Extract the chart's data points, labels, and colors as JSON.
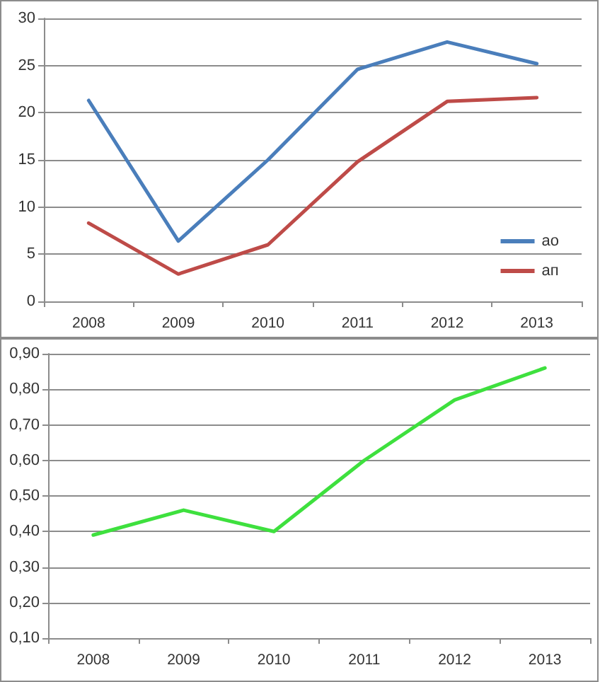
{
  "chart_data": [
    {
      "type": "line",
      "categories": [
        "2008",
        "2009",
        "2010",
        "2011",
        "2012",
        "2013"
      ],
      "series": [
        {
          "name": "ао",
          "color": "#4a7ebb",
          "values": [
            21.3,
            6.4,
            15.0,
            24.6,
            27.5,
            25.2
          ]
        },
        {
          "name": "ап",
          "color": "#be4b48",
          "values": [
            8.3,
            2.9,
            6.0,
            14.8,
            21.2,
            21.6
          ]
        }
      ],
      "ylim": [
        0,
        30
      ],
      "yticks": [
        0,
        5,
        10,
        15,
        20,
        25,
        30
      ],
      "grid": "y",
      "legend": "bottom right",
      "marker": "none"
    },
    {
      "type": "line",
      "categories": [
        "2008",
        "2009",
        "2010",
        "2011",
        "2012",
        "2013"
      ],
      "series": [
        {
          "color": "#3ee03e",
          "values": [
            0.39,
            0.46,
            0.4,
            0.6,
            0.77,
            0.86
          ]
        }
      ],
      "ylim": [
        0.1,
        0.9
      ],
      "yticks": [
        {
          "value": 0.1,
          "label": "0,10"
        },
        {
          "value": 0.2,
          "label": "0,20"
        },
        {
          "value": 0.3,
          "label": "0,30"
        },
        {
          "value": 0.4,
          "label": "0,40"
        },
        {
          "value": 0.5,
          "label": "0,50"
        },
        {
          "value": 0.6,
          "label": "0,60"
        },
        {
          "value": 0.7,
          "label": "0,70"
        },
        {
          "value": 0.8,
          "label": "0,80"
        },
        {
          "value": 0.9,
          "label": "0,90"
        }
      ],
      "grid": "y",
      "legend": false,
      "marker": "none"
    }
  ]
}
